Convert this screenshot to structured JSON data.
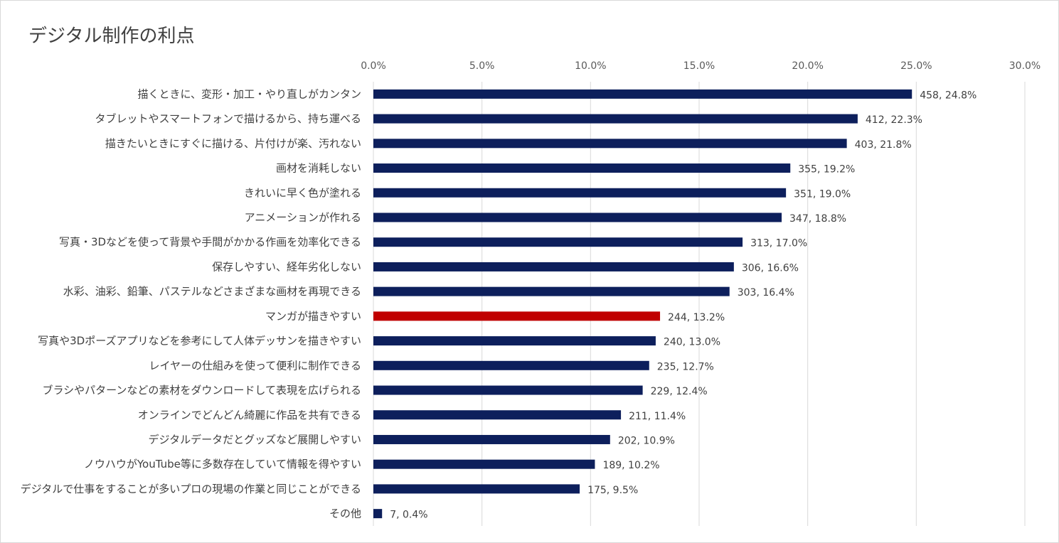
{
  "chart_data": {
    "type": "bar",
    "orientation": "horizontal",
    "title": "デジタル制作の利点",
    "xlim": [
      0,
      30
    ],
    "x_ticks": [
      "0.0%",
      "5.0%",
      "10.0%",
      "15.0%",
      "20.0%",
      "25.0%",
      "30.0%"
    ],
    "grid": true,
    "colors": {
      "default": "#0d1f5c",
      "highlight": "#c00000"
    },
    "categories": [
      "描くときに、変形・加工・やり直しがカンタン",
      "タブレットやスマートフォンで描けるから、持ち運べる",
      "描きたいときにすぐに描ける、片付けが楽、汚れない",
      "画材を消耗しない",
      "きれいに早く色が塗れる",
      "アニメーションが作れる",
      "写真・3Dなどを使って背景や手間がかかる作画を効率化できる",
      "保存しやすい、経年劣化しない",
      "水彩、油彩、鉛筆、パステルなどさまざまな画材を再現できる",
      "マンガが描きやすい",
      "写真や3Dポーズアプリなどを参考にして人体デッサンを描きやすい",
      "レイヤーの仕組みを使って便利に制作できる",
      "ブラシやパターンなどの素材をダウンロードして表現を広げられる",
      "オンラインでどんどん綺麗に作品を共有できる",
      "デジタルデータだとグッズなど展開しやすい",
      "ノウハウがYouTube等に多数存在していて情報を得やすい",
      "デジタルで仕事をすることが多いプロの現場の作業と同じことができる",
      "その他"
    ],
    "counts": [
      458,
      412,
      403,
      355,
      351,
      347,
      313,
      306,
      303,
      244,
      240,
      235,
      229,
      211,
      202,
      189,
      175,
      7
    ],
    "values": [
      24.8,
      22.3,
      21.8,
      19.2,
      19.0,
      18.8,
      17.0,
      16.6,
      16.4,
      13.2,
      13.0,
      12.7,
      12.4,
      11.4,
      10.9,
      10.2,
      9.5,
      0.4
    ],
    "labels": [
      "458, 24.8%",
      "412, 22.3%",
      "403, 21.8%",
      "355, 19.2%",
      "351, 19.0%",
      "347, 18.8%",
      "313, 17.0%",
      "306, 16.6%",
      "303, 16.4%",
      "244, 13.2%",
      "240, 13.0%",
      "235, 12.7%",
      "229, 12.4%",
      "211, 11.4%",
      "202, 10.9%",
      "189, 10.2%",
      "175, 9.5%",
      "7, 0.4%"
    ],
    "highlight_index": 9
  }
}
